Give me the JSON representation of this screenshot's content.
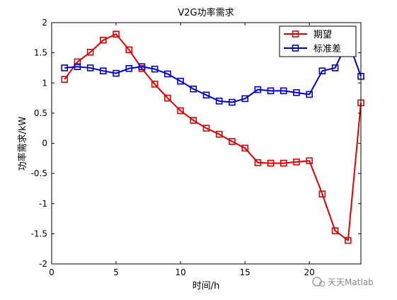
{
  "chart_data": {
    "type": "line",
    "title": "V2G功率需求",
    "xlabel": "时间/h",
    "ylabel": "功率需求/kW",
    "xlim": [
      0,
      24
    ],
    "ylim": [
      -2,
      2
    ],
    "xticks": [
      0,
      5,
      10,
      15,
      20
    ],
    "xtick_labels": [
      "0",
      "5",
      "10",
      "15",
      "20"
    ],
    "yticks": [
      -2,
      -1.5,
      -1,
      -0.5,
      0,
      0.5,
      1,
      1.5,
      2
    ],
    "ytick_labels": [
      "-2",
      "-1.5",
      "-1",
      "-0.5",
      "0",
      "0.5",
      "1",
      "1.5",
      "2"
    ],
    "grid": false,
    "legend_position": "top-right",
    "x": [
      1,
      2,
      3,
      4,
      5,
      6,
      7,
      8,
      9,
      10,
      11,
      12,
      13,
      14,
      15,
      16,
      17,
      18,
      19,
      20,
      21,
      22,
      23,
      24
    ],
    "series": [
      {
        "name": "期望",
        "color": "#e00000",
        "marker": "square",
        "values": [
          1.06,
          1.35,
          1.51,
          1.71,
          1.81,
          1.55,
          1.24,
          0.98,
          0.75,
          0.54,
          0.38,
          0.25,
          0.15,
          0.03,
          -0.08,
          -0.32,
          -0.33,
          -0.33,
          -0.31,
          -0.29,
          -0.84,
          -1.45,
          -1.61,
          0.67
        ]
      },
      {
        "name": "标准差",
        "color": "#0000d0",
        "marker": "square",
        "values": [
          1.25,
          1.27,
          1.25,
          1.2,
          1.16,
          1.24,
          1.27,
          1.23,
          1.15,
          1.03,
          0.9,
          0.8,
          0.7,
          0.68,
          0.74,
          0.89,
          0.87,
          0.87,
          0.84,
          0.81,
          1.2,
          1.25,
          1.7,
          1.11
        ]
      }
    ]
  },
  "watermark": {
    "text": "天天Matlab"
  }
}
